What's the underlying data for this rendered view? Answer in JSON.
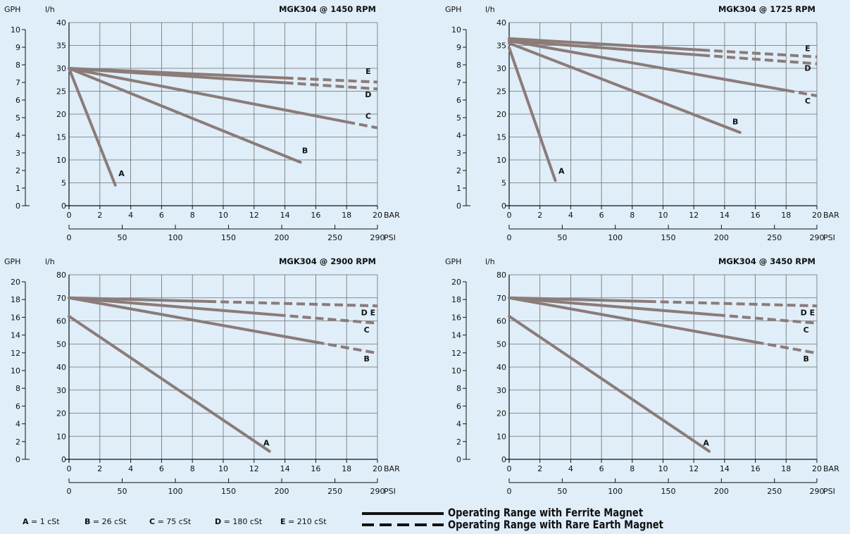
{
  "colors": {
    "background": "#dfeef8",
    "curve": "#8b7b79",
    "grid": "#6f6f6f",
    "axis": "#111111"
  },
  "legend": {
    "viscosity_key": [
      {
        "key": "A",
        "text": "= 1 cSt"
      },
      {
        "key": "B",
        "text": "= 26 cSt"
      },
      {
        "key": "C",
        "text": "= 75 cSt"
      },
      {
        "key": "D",
        "text": "= 180 cSt"
      },
      {
        "key": "E",
        "text": "= 210 cSt"
      }
    ],
    "solid": "Operating Range with Ferrite Magnet",
    "dashed": "Operating Range with Rare Earth Magnet"
  },
  "chart_data": [
    {
      "type": "line",
      "title": "MGK304 @ 1450 RPM",
      "ylabel": "l/h",
      "ylabel2": "GPH",
      "xlabel": "BAR",
      "xlabel2": "PSI",
      "xlim": [
        0,
        20
      ],
      "ylim": [
        0,
        40
      ],
      "x_ticks": [
        0,
        2,
        4,
        6,
        8,
        10,
        12,
        14,
        16,
        18,
        20
      ],
      "y_ticks": [
        0,
        5,
        10,
        15,
        20,
        25,
        30,
        35,
        40
      ],
      "gph_ticks": [
        0,
        1,
        2,
        3,
        4,
        5,
        6,
        7,
        8,
        9,
        10
      ],
      "psi_ticks": [
        0,
        50,
        100,
        150,
        200,
        250,
        290
      ],
      "grid": true,
      "series": [
        {
          "name": "A",
          "points": [
            [
              0,
              30
            ],
            [
              3,
              4.5
            ]
          ],
          "dash_from": null
        },
        {
          "name": "B",
          "points": [
            [
              0,
              30
            ],
            [
              15,
              9.5
            ]
          ],
          "dash_from": null
        },
        {
          "name": "C",
          "points": [
            [
              0,
              30
            ],
            [
              20,
              17
            ]
          ],
          "dash_from": 18
        },
        {
          "name": "D",
          "points": [
            [
              0,
              30
            ],
            [
              20,
              25.5
            ]
          ],
          "dash_from": 14
        },
        {
          "name": "E",
          "points": [
            [
              0,
              30
            ],
            [
              20,
              27
            ]
          ],
          "dash_from": 14
        }
      ],
      "labels": [
        {
          "text": "A",
          "x": 3.4,
          "y": 6.5
        },
        {
          "text": "B",
          "x": 15.3,
          "y": 11.5
        },
        {
          "text": "C",
          "x": 19.4,
          "y": 19.0
        },
        {
          "text": "D",
          "x": 19.4,
          "y": 23.7
        },
        {
          "text": "E",
          "x": 19.4,
          "y": 28.8
        }
      ]
    },
    {
      "type": "line",
      "title": "MGK304 @ 1725 RPM",
      "ylabel": "l/h",
      "ylabel2": "GPH",
      "xlabel": "BAR",
      "xlabel2": "PSI",
      "xlim": [
        0,
        20
      ],
      "ylim": [
        0,
        40
      ],
      "x_ticks": [
        0,
        2,
        4,
        6,
        8,
        10,
        12,
        14,
        16,
        18,
        20
      ],
      "y_ticks": [
        0,
        5,
        10,
        15,
        20,
        25,
        30,
        35,
        40
      ],
      "gph_ticks": [
        0,
        1,
        2,
        3,
        4,
        5,
        6,
        7,
        8,
        9,
        10
      ],
      "psi_ticks": [
        0,
        50,
        100,
        150,
        200,
        250,
        290
      ],
      "grid": true,
      "series": [
        {
          "name": "A",
          "points": [
            [
              0,
              34.5
            ],
            [
              3,
              5.5
            ]
          ],
          "dash_from": null
        },
        {
          "name": "B",
          "points": [
            [
              0,
              35.5
            ],
            [
              15,
              16
            ]
          ],
          "dash_from": null
        },
        {
          "name": "C",
          "points": [
            [
              0,
              36
            ],
            [
              20,
              24
            ]
          ],
          "dash_from": 18
        },
        {
          "name": "D",
          "points": [
            [
              0,
              36
            ],
            [
              20,
              31
            ]
          ],
          "dash_from": 12.5
        },
        {
          "name": "E",
          "points": [
            [
              0,
              36.5
            ],
            [
              20,
              32.5
            ]
          ],
          "dash_from": 12.5
        }
      ],
      "labels": [
        {
          "text": "A",
          "x": 3.4,
          "y": 7.0
        },
        {
          "text": "B",
          "x": 14.7,
          "y": 17.8
        },
        {
          "text": "C",
          "x": 19.4,
          "y": 22.3
        },
        {
          "text": "D",
          "x": 19.4,
          "y": 29.5
        },
        {
          "text": "E",
          "x": 19.4,
          "y": 33.8
        }
      ]
    },
    {
      "type": "line",
      "title": "MGK304 @ 2900 RPM",
      "ylabel": "l/h",
      "ylabel2": "GPH",
      "xlabel": "BAR",
      "xlabel2": "PSI",
      "xlim": [
        0,
        20
      ],
      "ylim": [
        0,
        80
      ],
      "x_ticks": [
        0,
        2,
        4,
        6,
        8,
        10,
        12,
        14,
        16,
        18,
        20
      ],
      "y_ticks": [
        0,
        10,
        20,
        30,
        40,
        50,
        60,
        70,
        80
      ],
      "gph_ticks": [
        0,
        2,
        4,
        6,
        8,
        10,
        12,
        14,
        16,
        18,
        20
      ],
      "psi_ticks": [
        0,
        50,
        100,
        150,
        200,
        250,
        290
      ],
      "grid": true,
      "series": [
        {
          "name": "A",
          "points": [
            [
              0,
              62
            ],
            [
              13,
              3.5
            ]
          ],
          "dash_from": null
        },
        {
          "name": "B",
          "points": [
            [
              0,
              70
            ],
            [
              20,
              46
            ]
          ],
          "dash_from": 16
        },
        {
          "name": "C",
          "points": [
            [
              0,
              70
            ],
            [
              20,
              59
            ]
          ],
          "dash_from": 13.5
        },
        {
          "name": "DE",
          "points": [
            [
              0,
              70
            ],
            [
              20,
              66.5
            ]
          ],
          "dash_from": 9
        }
      ],
      "labels": [
        {
          "text": "A",
          "x": 12.8,
          "y": 6.0
        },
        {
          "text": "B",
          "x": 19.3,
          "y": 42.5
        },
        {
          "text": "C",
          "x": 19.3,
          "y": 55.0
        },
        {
          "text": "D E",
          "x": 19.4,
          "y": 62.5
        }
      ]
    },
    {
      "type": "line",
      "title": "MGK304 @ 3450 RPM",
      "ylabel": "l/h",
      "ylabel2": "GPH",
      "xlabel": "BAR",
      "xlabel2": "PSI",
      "xlim": [
        0,
        20
      ],
      "ylim": [
        0,
        80
      ],
      "x_ticks": [
        0,
        2,
        4,
        6,
        8,
        10,
        12,
        14,
        16,
        18,
        20
      ],
      "y_ticks": [
        0,
        10,
        20,
        30,
        40,
        50,
        60,
        70,
        80
      ],
      "gph_ticks": [
        0,
        2,
        4,
        6,
        8,
        10,
        12,
        14,
        16,
        18,
        20
      ],
      "psi_ticks": [
        0,
        50,
        100,
        150,
        200,
        250,
        290
      ],
      "grid": true,
      "series": [
        {
          "name": "A",
          "points": [
            [
              0,
              62
            ],
            [
              13,
              3.5
            ]
          ],
          "dash_from": null
        },
        {
          "name": "B",
          "points": [
            [
              0,
              70
            ],
            [
              20,
              46
            ]
          ],
          "dash_from": 16
        },
        {
          "name": "C",
          "points": [
            [
              0,
              70
            ],
            [
              20,
              59
            ]
          ],
          "dash_from": 13.5
        },
        {
          "name": "DE",
          "points": [
            [
              0,
              70
            ],
            [
              20,
              66.5
            ]
          ],
          "dash_from": 9
        }
      ],
      "labels": [
        {
          "text": "A",
          "x": 12.8,
          "y": 6.0
        },
        {
          "text": "B",
          "x": 19.3,
          "y": 42.5
        },
        {
          "text": "C",
          "x": 19.3,
          "y": 55.0
        },
        {
          "text": "D E",
          "x": 19.4,
          "y": 62.5
        }
      ]
    }
  ]
}
